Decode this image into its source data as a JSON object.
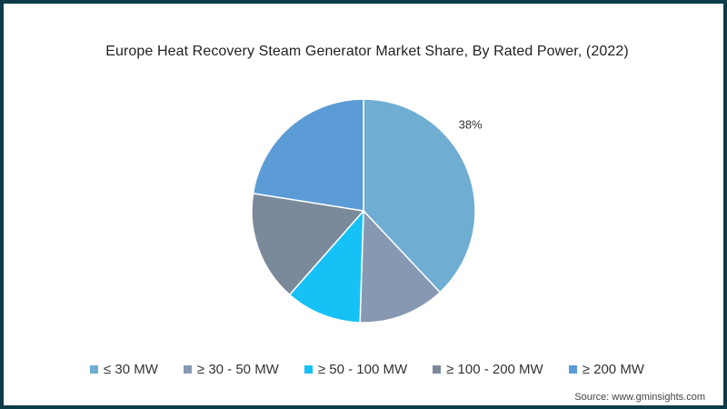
{
  "chart_data": {
    "type": "pie",
    "title": "Europe Heat Recovery Steam Generator Market Share, By Rated Power, (2022)",
    "categories": [
      "≤ 30 MW",
      "≥ 30 - 50 MW",
      "≥ 50 - 100 MW",
      "≥ 100 - 200 MW",
      "≥ 200 MW"
    ],
    "values": [
      38,
      12.5,
      11,
      16,
      22.5
    ],
    "colors": [
      "#6fadd2",
      "#8799b2",
      "#16c1f5",
      "#7a8a9a",
      "#5b9bd6"
    ],
    "data_labels": [
      "38%",
      "",
      "",
      "",
      ""
    ],
    "legend_position": "bottom"
  },
  "source": "Source: www.gminsights.com"
}
